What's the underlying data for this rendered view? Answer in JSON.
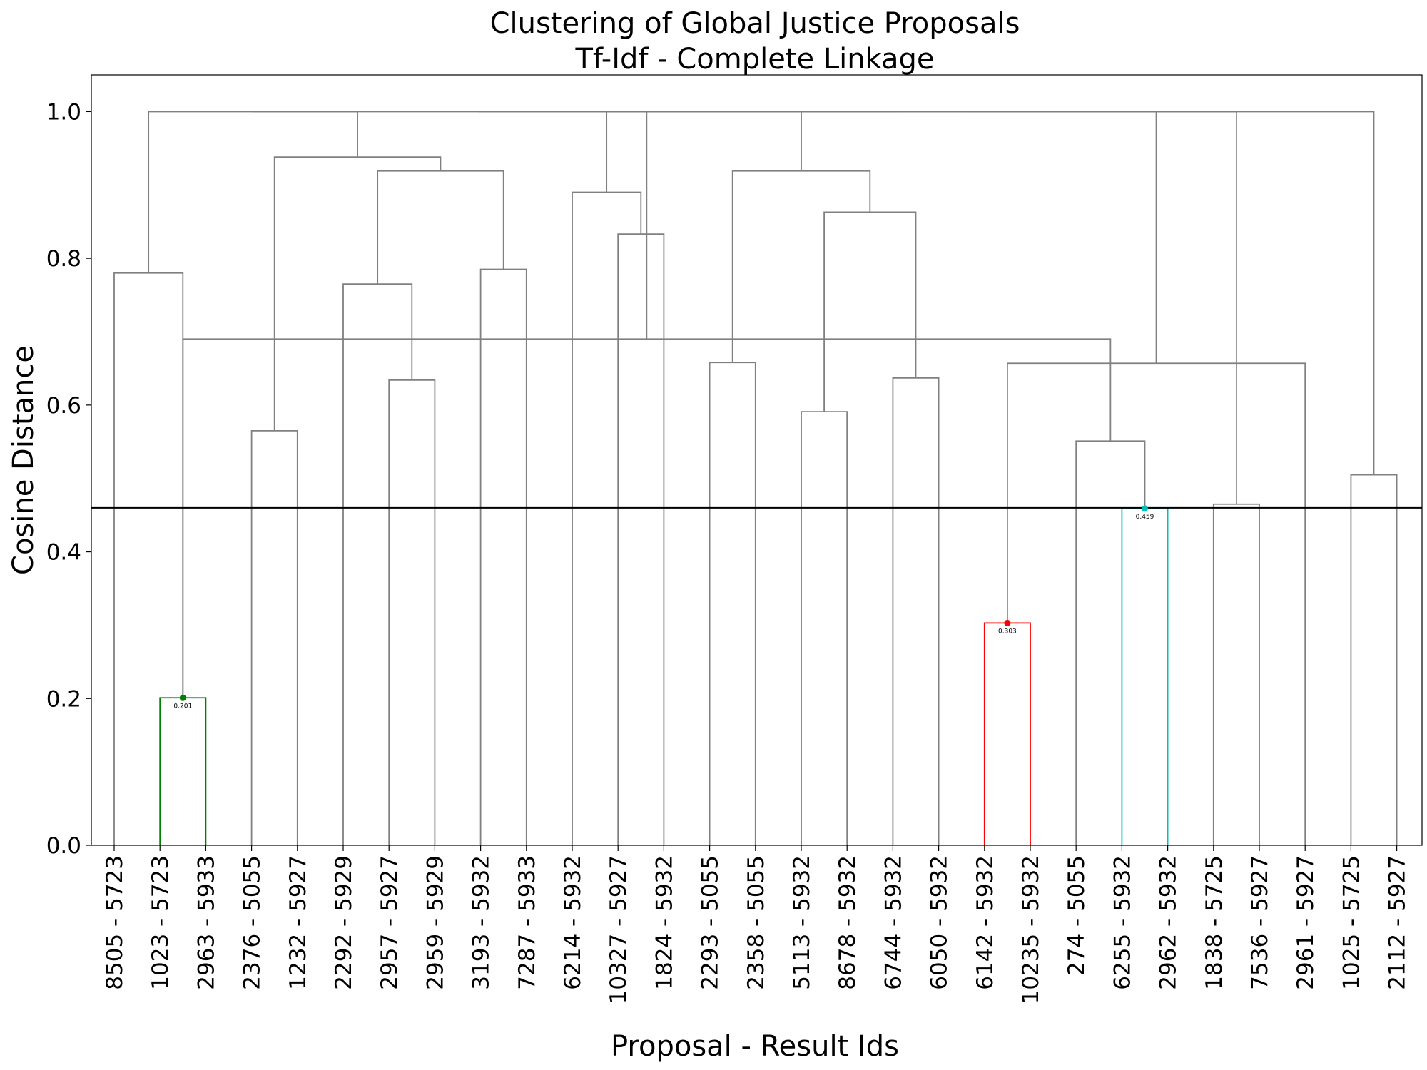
{
  "chart_data": {
    "type": "dendrogram",
    "title": "Clustering of Global Justice Proposals",
    "subtitle": "Tf-Idf - Complete Linkage",
    "xlabel": "Proposal - Result Ids",
    "ylabel": "Cosine Distance",
    "ylim": [
      0,
      1.05
    ],
    "yticks": [
      "0.0",
      "0.2",
      "0.4",
      "0.6",
      "0.8",
      "1.0"
    ],
    "ytick_values": [
      0,
      0.2,
      0.4,
      0.6,
      0.8,
      1.0
    ],
    "threshold": 0.46,
    "leaves": [
      "8505 - 5723",
      "1023 - 5723",
      "2963 - 5933",
      "2376 - 5055",
      "1232 - 5927",
      "2292 - 5929",
      "2957 - 5927",
      "2959 - 5929",
      "3193 - 5932",
      "7287 - 5933",
      "6214 - 5932",
      "10327 - 5927",
      "1824 - 5932",
      "2293 - 5055",
      "2358 - 5055",
      "5113 - 5932",
      "8678 - 5932",
      "6744 - 5932",
      "6050 - 5932",
      "6142 - 5932",
      "10235 - 5932",
      "274 - 5055",
      "6255 - 5932",
      "2962 - 5932",
      "1838 - 5725",
      "7536 - 5927",
      "2961 - 5927",
      "1025 - 5725",
      "2112 - 5927"
    ],
    "links": [
      {
        "left": 1,
        "right": 2,
        "height": 0.201,
        "color": "#008000",
        "label": "0.201"
      },
      {
        "left": 19,
        "right": 20,
        "height": 0.303,
        "color": "#ff0000",
        "label": "0.303"
      },
      {
        "left": 22,
        "right": 23,
        "height": 0.459,
        "color": "#00bfbf",
        "label": "0.459"
      },
      {
        "left": 24,
        "right": 25,
        "height": 0.465,
        "color": "#808080"
      },
      {
        "left": 27,
        "right": 28,
        "height": 0.505,
        "color": "#808080"
      },
      {
        "left": 21,
        "right": 31,
        "height": 0.551,
        "color": "#808080"
      },
      {
        "left": 3,
        "right": 4,
        "height": 0.565,
        "color": "#808080"
      },
      {
        "left": 15,
        "right": 16,
        "height": 0.591,
        "color": "#808080"
      },
      {
        "left": 6,
        "right": 7,
        "height": 0.634,
        "color": "#808080"
      },
      {
        "left": 17,
        "right": 18,
        "height": 0.637,
        "color": "#808080"
      },
      {
        "left": 26,
        "right": 30,
        "height": 0.657,
        "color": "#808080"
      },
      {
        "left": 13,
        "right": 14,
        "height": 0.658,
        "color": "#808080"
      },
      {
        "left": 29,
        "right": 34,
        "height": 0.69,
        "color": "#808080"
      },
      {
        "left": 5,
        "right": 37,
        "height": 0.765,
        "color": "#808080"
      },
      {
        "left": 0,
        "right": 29,
        "height": 0.78,
        "color": "#808080"
      },
      {
        "left": 8,
        "right": 9,
        "height": 0.785,
        "color": "#808080"
      },
      {
        "left": 11,
        "right": 12,
        "height": 0.833,
        "color": "#808080"
      },
      {
        "left": 36,
        "right": 38,
        "height": 0.863,
        "color": "#808080"
      },
      {
        "left": 10,
        "right": 45,
        "height": 0.89,
        "color": "#808080"
      },
      {
        "left": 42,
        "right": 44,
        "height": 0.919,
        "color": "#808080"
      },
      {
        "left": 40,
        "right": 46,
        "height": 0.919,
        "color": "#808080"
      },
      {
        "left": 35,
        "right": 48,
        "height": 0.938,
        "color": "#808080"
      },
      {
        "left": 43,
        "right": 50,
        "height": 1.0,
        "color": "#808080"
      },
      {
        "left": 47,
        "right": 49,
        "height": 1.0,
        "color": "#808080"
      },
      {
        "left": 41,
        "right": 39,
        "height": 1.0,
        "color": "#808080"
      },
      {
        "left": 51,
        "right": 52,
        "height": 1.0,
        "color": "#808080"
      },
      {
        "left": 54,
        "right": 53,
        "height": 1.0,
        "color": "#808080"
      },
      {
        "left": 55,
        "right": 32,
        "height": 1.0,
        "color": "#808080"
      },
      {
        "left": 56,
        "right": 33,
        "height": 1.0,
        "color": "#808080"
      }
    ]
  }
}
